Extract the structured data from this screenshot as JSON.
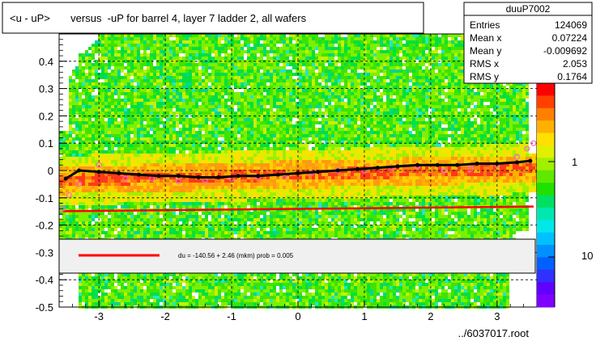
{
  "chart_data": {
    "type": "heatmap",
    "title": "<u - uP>       versus  -uP for barrel 4, layer 7 ladder 2, all wafers",
    "xlabel": "",
    "ylabel": "",
    "footer": "../6037017.root",
    "xlim": [
      -3.6,
      3.6
    ],
    "ylim": [
      -0.5,
      0.5
    ],
    "x_ticks": [
      -3,
      -2,
      -1,
      0,
      1,
      2,
      3
    ],
    "y_ticks": [
      -0.5,
      -0.4,
      -0.3,
      -0.2,
      -0.1,
      0,
      0.1,
      0.2,
      0.3,
      0.4
    ],
    "y_tick_labels": [
      "-0.5",
      "-0.4",
      "-0.3",
      "-0.2",
      "-0.1",
      "0",
      "0.1",
      "0.2",
      "0.3",
      "0.4"
    ],
    "grid": true,
    "stats": {
      "name": "duuP7002",
      "rows": [
        {
          "label": "Entries",
          "value": "124069"
        },
        {
          "label": "Mean x",
          "value": "0.07224"
        },
        {
          "label": "Mean y",
          "value": "-0.009692"
        },
        {
          "label": "RMS x",
          "value": "2.053"
        },
        {
          "label": "RMS y",
          "value": "0.1764"
        }
      ]
    },
    "fit": {
      "label": "du = -140.56 +  2.46 (mkm) prob = 0.005",
      "line_color": "#ff0000",
      "x": [
        -3.55,
        3.55
      ],
      "y": [
        -0.149,
        -0.132
      ]
    },
    "colorbar": {
      "tick_labels": [
        "1",
        "10"
      ]
    },
    "profile_mean": {
      "color": "#000000",
      "x": [
        -3.5,
        -3.3,
        -3.0,
        -2.7,
        -2.4,
        -2.1,
        -1.8,
        -1.5,
        -1.2,
        -0.9,
        -0.6,
        -0.3,
        0.0,
        0.3,
        0.6,
        0.9,
        1.2,
        1.5,
        1.8,
        2.1,
        2.4,
        2.7,
        3.0,
        3.3,
        3.5
      ],
      "y": [
        -0.03,
        0.0,
        -0.005,
        -0.01,
        -0.015,
        -0.02,
        -0.02,
        -0.025,
        -0.025,
        -0.02,
        -0.02,
        -0.015,
        -0.01,
        -0.005,
        0.0,
        0.005,
        0.01,
        0.015,
        0.02,
        0.02,
        0.02,
        0.025,
        0.025,
        0.03,
        0.035
      ]
    },
    "profile_marker": {
      "color": "#ff66cc",
      "x": [
        -3.55,
        -3.45,
        -3.3,
        -3.0,
        -2.6,
        -2.2,
        -1.8,
        -1.4,
        -1.0,
        -0.6,
        -0.2,
        0.2,
        0.6,
        1.0,
        1.4,
        1.8,
        2.2,
        2.6,
        3.0,
        3.3,
        3.45,
        3.55
      ],
      "y": [
        -0.14,
        -0.09,
        -0.05,
        0.02,
        -0.03,
        -0.03,
        -0.04,
        -0.035,
        -0.03,
        -0.025,
        -0.02,
        -0.01,
        0.0,
        0.0,
        0.01,
        0.015,
        0.0,
        0.005,
        0.02,
        0.05,
        0.08,
        0.1
      ]
    }
  }
}
